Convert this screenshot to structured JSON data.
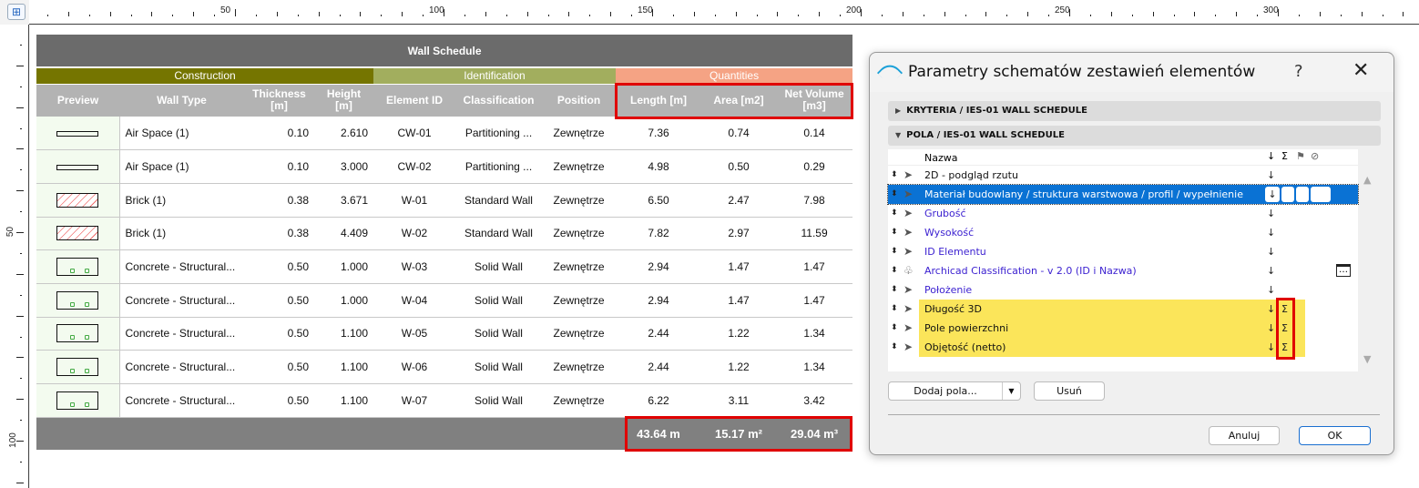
{
  "ruler": {
    "top_labels": [
      "50",
      "100",
      "150",
      "200",
      "250",
      "300"
    ],
    "left_labels": [
      "50",
      "100"
    ]
  },
  "schedule": {
    "title": "Wall Schedule",
    "groups": [
      {
        "label": "Construction",
        "color": "#757500"
      },
      {
        "label": "Identification",
        "color": "#a2ae5e"
      },
      {
        "label": "Quantities",
        "color": "#f5a384"
      }
    ],
    "columns": [
      "Preview",
      "Wall Type",
      "Thickness\n[m]",
      "Height\n[m]",
      "Element ID",
      "Classification",
      "Position",
      "Length [m]",
      "Area [m2]",
      "Net Volume\n[m3]"
    ],
    "rows": [
      {
        "preview": "air",
        "type": "Air Space (1)",
        "thickness": "0.10",
        "height": "2.610",
        "id": "CW-01",
        "classification": "Partitioning ...",
        "position": "Zewnętrze",
        "length": "7.36",
        "area": "0.74",
        "volume": "0.14"
      },
      {
        "preview": "air",
        "type": "Air Space (1)",
        "thickness": "0.10",
        "height": "3.000",
        "id": "CW-02",
        "classification": "Partitioning ...",
        "position": "Zewnętrze",
        "length": "4.98",
        "area": "0.50",
        "volume": "0.29"
      },
      {
        "preview": "brick",
        "type": "Brick (1)",
        "thickness": "0.38",
        "height": "3.671",
        "id": "W-01",
        "classification": "Standard Wall",
        "position": "Zewnętrze",
        "length": "6.50",
        "area": "2.47",
        "volume": "7.98"
      },
      {
        "preview": "brick",
        "type": "Brick (1)",
        "thickness": "0.38",
        "height": "4.409",
        "id": "W-02",
        "classification": "Standard Wall",
        "position": "Zewnętrze",
        "length": "7.82",
        "area": "2.97",
        "volume": "11.59"
      },
      {
        "preview": "conc",
        "type": "Concrete - Structural...",
        "thickness": "0.50",
        "height": "1.000",
        "id": "W-03",
        "classification": "Solid Wall",
        "position": "Zewnętrze",
        "length": "2.94",
        "area": "1.47",
        "volume": "1.47"
      },
      {
        "preview": "conc",
        "type": "Concrete - Structural...",
        "thickness": "0.50",
        "height": "1.000",
        "id": "W-04",
        "classification": "Solid Wall",
        "position": "Zewnętrze",
        "length": "2.94",
        "area": "1.47",
        "volume": "1.47"
      },
      {
        "preview": "conc",
        "type": "Concrete - Structural...",
        "thickness": "0.50",
        "height": "1.100",
        "id": "W-05",
        "classification": "Solid Wall",
        "position": "Zewnętrze",
        "length": "2.44",
        "area": "1.22",
        "volume": "1.34"
      },
      {
        "preview": "conc",
        "type": "Concrete - Structural...",
        "thickness": "0.50",
        "height": "1.100",
        "id": "W-06",
        "classification": "Solid Wall",
        "position": "Zewnętrze",
        "length": "2.44",
        "area": "1.22",
        "volume": "1.34"
      },
      {
        "preview": "conc",
        "type": "Concrete - Structural...",
        "thickness": "0.50",
        "height": "1.100",
        "id": "W-07",
        "classification": "Solid Wall",
        "position": "Zewnętrze",
        "length": "6.22",
        "area": "3.11",
        "volume": "3.42"
      }
    ],
    "totals": {
      "length": "43.64 m",
      "area": "15.17 m²",
      "volume": "29.04 m³"
    }
  },
  "dialog": {
    "title": "Parametry schematów zestawień elementów",
    "help": "?",
    "close": "✕",
    "criteria_section": "KRYTERIA / IES-01  WALL SCHEDULE",
    "fields_section": "POLA / IES-01  WALL SCHEDULE",
    "list_header": {
      "name": "Nazwa",
      "sort": "↓",
      "sum": "Σ",
      "flag": "⚑",
      "hide": "⊘"
    },
    "fields": [
      {
        "name": "2D - podgląd rzutu",
        "icon": "cursor",
        "style": "black"
      },
      {
        "name": "Materiał budowlany / struktura warstwowa / profil / wypełnienie",
        "icon": "cursor",
        "style": "selected"
      },
      {
        "name": "Grubość",
        "icon": "cursor",
        "style": "link"
      },
      {
        "name": "Wysokość",
        "icon": "cursor",
        "style": "link"
      },
      {
        "name": "ID Elementu",
        "icon": "cursor",
        "style": "link"
      },
      {
        "name": "Archicad Classification - v 2.0 (ID i Nazwa)",
        "icon": "tree",
        "style": "link",
        "more": "…"
      },
      {
        "name": "Położenie",
        "icon": "cursor",
        "style": "link"
      },
      {
        "name": "Długość 3D",
        "icon": "cursor",
        "style": "highlight",
        "sum": "Σ"
      },
      {
        "name": "Pole powierzchni",
        "icon": "cursor",
        "style": "highlight",
        "sum": "Σ"
      },
      {
        "name": "Objętość (netto)",
        "icon": "cursor",
        "style": "highlight",
        "sum": "Σ"
      }
    ],
    "add_button": "Dodaj pola...",
    "remove_button": "Usuń",
    "cancel_button": "Anuluj",
    "ok_button": "OK"
  },
  "colors": {
    "highlight": "#fbe55a",
    "selection": "#0a72d4",
    "annotation": "#e00000"
  }
}
